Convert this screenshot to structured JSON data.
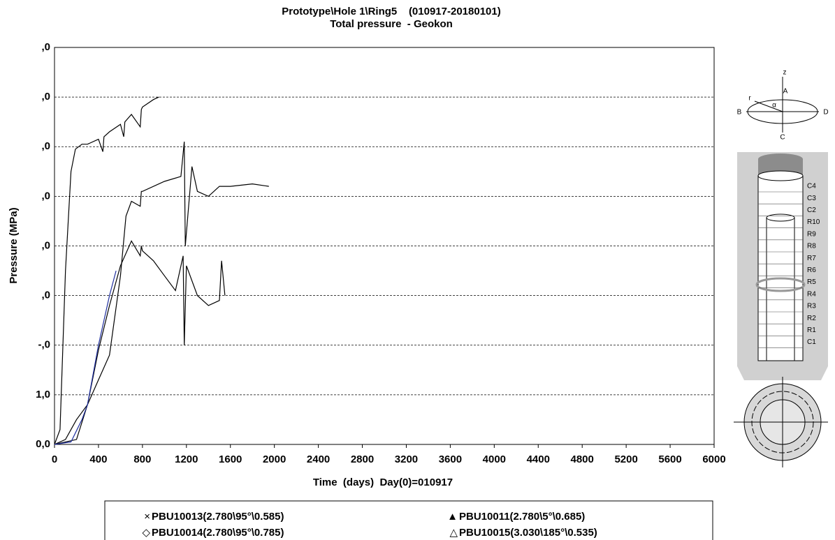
{
  "chart_data": {
    "type": "line",
    "title": "Prototype\\Hole 1\\Ring5    (010917-20180101)",
    "subtitle": "Total pressure  - Geokon",
    "x_label": "Time  (days)  Day(0)=010917",
    "y_label": "Pressure (MPa)",
    "xlim": [
      0,
      6000
    ],
    "xticks": [
      0,
      400,
      800,
      1200,
      1600,
      2000,
      2400,
      2800,
      3200,
      3600,
      4000,
      4400,
      4800,
      5200,
      5600,
      6000
    ],
    "ylim": [
      0,
      8
    ],
    "yticks": [
      {
        "value": 0,
        "label": "0,0"
      },
      {
        "value": 1,
        "label": "1,0"
      },
      {
        "value": 2,
        "label": "-,0"
      },
      {
        "value": 3,
        "label": ",0"
      },
      {
        "value": 4,
        "label": ",0"
      },
      {
        "value": 5,
        "label": ",0"
      },
      {
        "value": 6,
        "label": ",0"
      },
      {
        "value": 7,
        "label": ",0"
      },
      {
        "value": 8,
        "label": ",0"
      }
    ],
    "grid": true,
    "series": [
      {
        "name": "PBU10013(2.780\\95°\\0.585)",
        "marker": "×",
        "color": "#000000",
        "x": [
          0,
          50,
          100,
          150,
          190,
          250,
          300,
          400,
          440,
          450,
          500,
          600,
          630,
          640,
          700,
          780,
          790,
          800,
          900,
          950
        ],
        "values": [
          0,
          0.3,
          3.5,
          5.5,
          5.95,
          6.05,
          6.05,
          6.15,
          5.9,
          6.2,
          6.3,
          6.45,
          6.2,
          6.5,
          6.65,
          6.4,
          6.75,
          6.8,
          6.95,
          7.0
        ]
      },
      {
        "name": "PBU10011(2.780\\5°\\0.685)",
        "marker": "▲",
        "color": "#000000",
        "x": [
          0,
          100,
          200,
          300,
          400,
          500,
          600,
          650,
          700,
          780,
          790,
          800,
          1000,
          1150,
          1180,
          1190,
          1250,
          1300,
          1400,
          1500,
          1600,
          1800,
          1950
        ],
        "values": [
          0,
          0.1,
          0.5,
          0.8,
          1.3,
          1.8,
          3.4,
          4.6,
          4.9,
          4.8,
          5.1,
          5.1,
          5.3,
          5.4,
          6.1,
          4.0,
          5.6,
          5.1,
          5.0,
          5.2,
          5.2,
          5.25,
          5.2
        ]
      },
      {
        "name": "PBU10014(2.780\\95°\\0.785)",
        "marker": "◇",
        "color": "#000000",
        "x": [
          0,
          200,
          300,
          400,
          500,
          600,
          700,
          780,
          790,
          800,
          900,
          1000,
          1100,
          1170,
          1180,
          1200,
          1300,
          1400,
          1500,
          1520,
          1550
        ],
        "values": [
          0,
          0.1,
          0.8,
          1.9,
          2.8,
          3.6,
          4.1,
          3.8,
          4.0,
          3.9,
          3.7,
          3.4,
          3.1,
          3.8,
          2.0,
          3.6,
          3.0,
          2.8,
          2.9,
          3.7,
          3.0
        ]
      },
      {
        "name": "PBU10015(3.030\\185°\\0.535)",
        "marker": "△",
        "color": "#1f2f9f",
        "x": [
          0,
          150,
          250,
          300,
          400,
          500,
          560
        ],
        "values": [
          0,
          0.05,
          0.5,
          0.8,
          2.0,
          3.0,
          3.5
        ]
      }
    ]
  },
  "diagram": {
    "axis_labels": [
      "z",
      "A",
      "B",
      "C",
      "D",
      "r",
      "α"
    ],
    "ring_labels": [
      "C4",
      "C3",
      "C2",
      "R10",
      "R9",
      "R8",
      "R7",
      "R6",
      "R5",
      "R4",
      "R3",
      "R2",
      "R1",
      "C1"
    ]
  }
}
